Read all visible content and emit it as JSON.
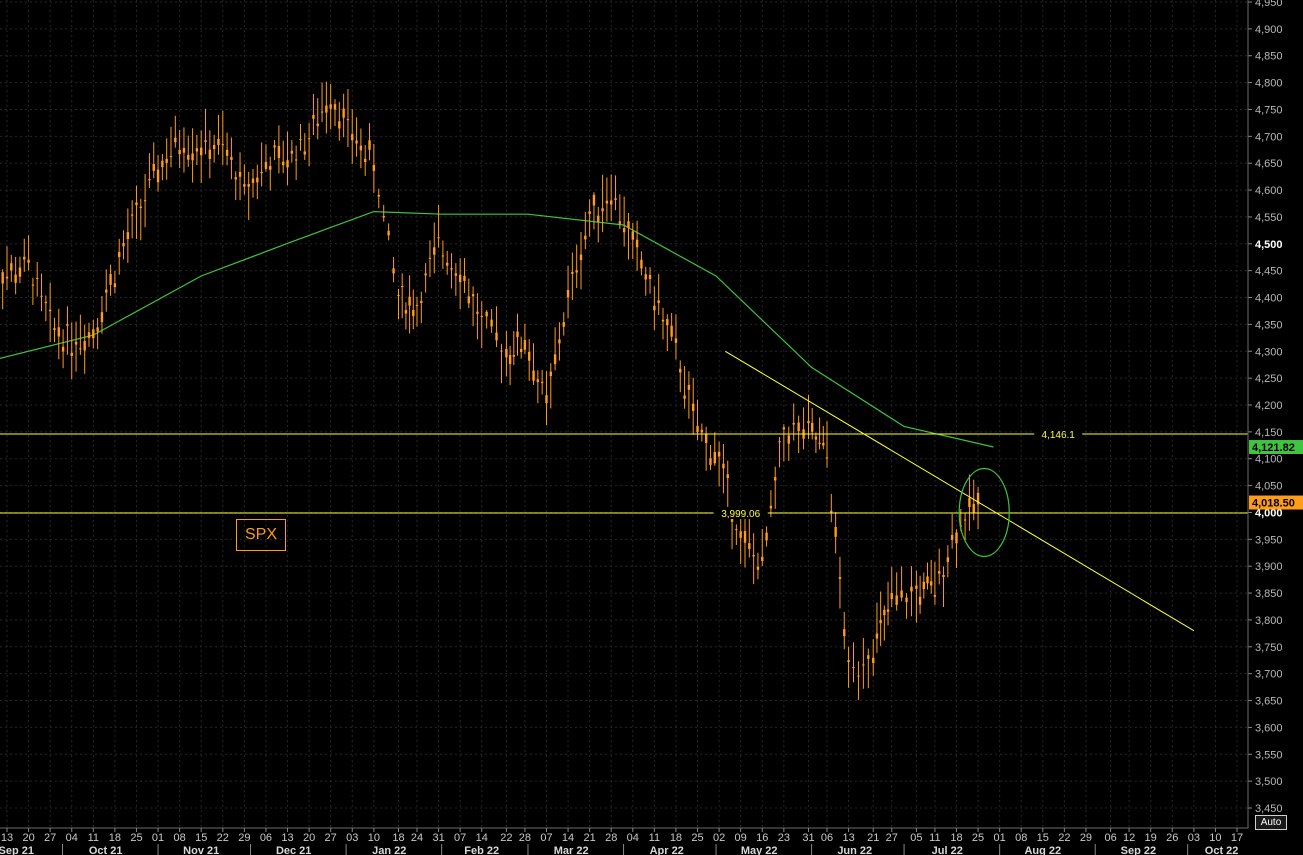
{
  "chart_data": {
    "type": "line",
    "ticker_label": "SPX",
    "axis_mode_label": "Auto",
    "y_range": [
      3450,
      4950
    ],
    "y_ticks": [
      "3,450",
      "3,500",
      "3,550",
      "3,600",
      "3,650",
      "3,700",
      "3,750",
      "3,800",
      "3,850",
      "3,900",
      "3,950",
      "4,000",
      "4,050",
      "4,100",
      "4,150",
      "4,200",
      "4,250",
      "4,300",
      "4,350",
      "4,400",
      "4,450",
      "4,500",
      "4,550",
      "4,600",
      "4,650",
      "4,700",
      "4,750",
      "4,800",
      "4,850",
      "4,900",
      "4,950"
    ],
    "y_ticks_bold": [
      "4,000",
      "4,500"
    ],
    "x_day_ticks": [
      {
        "label": "13",
        "date": "2021-09-13"
      },
      {
        "label": "20",
        "date": "2021-09-20"
      },
      {
        "label": "27",
        "date": "2021-09-27"
      },
      {
        "label": "04",
        "date": "2021-10-04"
      },
      {
        "label": "11",
        "date": "2021-10-11"
      },
      {
        "label": "18",
        "date": "2021-10-18"
      },
      {
        "label": "25",
        "date": "2021-10-25"
      },
      {
        "label": "01",
        "date": "2021-11-01"
      },
      {
        "label": "08",
        "date": "2021-11-08"
      },
      {
        "label": "15",
        "date": "2021-11-15"
      },
      {
        "label": "22",
        "date": "2021-11-22"
      },
      {
        "label": "29",
        "date": "2021-11-29"
      },
      {
        "label": "06",
        "date": "2021-12-06"
      },
      {
        "label": "13",
        "date": "2021-12-13"
      },
      {
        "label": "20",
        "date": "2021-12-20"
      },
      {
        "label": "27",
        "date": "2021-12-27"
      },
      {
        "label": "03",
        "date": "2022-01-03"
      },
      {
        "label": "10",
        "date": "2022-01-10"
      },
      {
        "label": "18",
        "date": "2022-01-18"
      },
      {
        "label": "24",
        "date": "2022-01-24"
      },
      {
        "label": "31",
        "date": "2022-01-31"
      },
      {
        "label": "07",
        "date": "2022-02-07"
      },
      {
        "label": "14",
        "date": "2022-02-14"
      },
      {
        "label": "22",
        "date": "2022-02-22"
      },
      {
        "label": "28",
        "date": "2022-02-28"
      },
      {
        "label": "07",
        "date": "2022-03-07"
      },
      {
        "label": "14",
        "date": "2022-03-14"
      },
      {
        "label": "21",
        "date": "2022-03-21"
      },
      {
        "label": "28",
        "date": "2022-03-28"
      },
      {
        "label": "04",
        "date": "2022-04-04"
      },
      {
        "label": "11",
        "date": "2022-04-11"
      },
      {
        "label": "18",
        "date": "2022-04-18"
      },
      {
        "label": "25",
        "date": "2022-04-25"
      },
      {
        "label": "02",
        "date": "2022-05-02"
      },
      {
        "label": "09",
        "date": "2022-05-09"
      },
      {
        "label": "16",
        "date": "2022-05-16"
      },
      {
        "label": "23",
        "date": "2022-05-23"
      },
      {
        "label": "31",
        "date": "2022-05-31"
      },
      {
        "label": "06",
        "date": "2022-06-06"
      },
      {
        "label": "13",
        "date": "2022-06-13"
      },
      {
        "label": "21",
        "date": "2022-06-21"
      },
      {
        "label": "27",
        "date": "2022-06-27"
      },
      {
        "label": "05",
        "date": "2022-07-05"
      },
      {
        "label": "11",
        "date": "2022-07-11"
      },
      {
        "label": "18",
        "date": "2022-07-18"
      },
      {
        "label": "25",
        "date": "2022-07-25"
      },
      {
        "label": "01",
        "date": "2022-08-01"
      },
      {
        "label": "08",
        "date": "2022-08-08"
      },
      {
        "label": "15",
        "date": "2022-08-15"
      },
      {
        "label": "22",
        "date": "2022-08-22"
      },
      {
        "label": "29",
        "date": "2022-08-29"
      },
      {
        "label": "06",
        "date": "2022-09-06"
      },
      {
        "label": "12",
        "date": "2022-09-12"
      },
      {
        "label": "19",
        "date": "2022-09-19"
      },
      {
        "label": "26",
        "date": "2022-09-26"
      },
      {
        "label": "03",
        "date": "2022-10-03"
      },
      {
        "label": "10",
        "date": "2022-10-10"
      },
      {
        "label": "17",
        "date": "2022-10-17"
      }
    ],
    "x_month_labels": [
      {
        "label": "Sep 21",
        "date": "2021-09-16"
      },
      {
        "label": "Oct 21",
        "date": "2021-10-15"
      },
      {
        "label": "Nov 21",
        "date": "2021-11-15"
      },
      {
        "label": "Dec 21",
        "date": "2021-12-15"
      },
      {
        "label": "Jan 22",
        "date": "2022-01-15"
      },
      {
        "label": "Feb 22",
        "date": "2022-02-14"
      },
      {
        "label": "Mar 22",
        "date": "2022-03-15"
      },
      {
        "label": "Apr 22",
        "date": "2022-04-15"
      },
      {
        "label": "May 22",
        "date": "2022-05-15"
      },
      {
        "label": "Jun 22",
        "date": "2022-06-15"
      },
      {
        "label": "Jul 22",
        "date": "2022-07-15"
      },
      {
        "label": "Aug 22",
        "date": "2022-08-15"
      },
      {
        "label": "Sep 22",
        "date": "2022-09-15"
      },
      {
        "label": "Oct 22",
        "date": "2022-10-12"
      }
    ],
    "price_series": {
      "color": "#ff9c1a",
      "points": [
        [
          "2021-09-06",
          4490
        ],
        [
          "2021-09-13",
          4440
        ],
        [
          "2021-09-20",
          4460
        ],
        [
          "2021-09-27",
          4350
        ],
        [
          "2021-10-04",
          4320
        ],
        [
          "2021-10-11",
          4340
        ],
        [
          "2021-10-18",
          4450
        ],
        [
          "2021-10-25",
          4550
        ],
        [
          "2021-11-01",
          4640
        ],
        [
          "2021-11-08",
          4690
        ],
        [
          "2021-11-15",
          4680
        ],
        [
          "2021-11-22",
          4680
        ],
        [
          "2021-11-29",
          4600
        ],
        [
          "2021-12-06",
          4650
        ],
        [
          "2021-12-13",
          4660
        ],
        [
          "2021-12-20",
          4700
        ],
        [
          "2021-12-27",
          4780
        ],
        [
          "2022-01-03",
          4700
        ],
        [
          "2022-01-10",
          4650
        ],
        [
          "2022-01-18",
          4400
        ],
        [
          "2022-01-24",
          4380
        ],
        [
          "2022-01-31",
          4500
        ],
        [
          "2022-02-07",
          4450
        ],
        [
          "2022-02-14",
          4350
        ],
        [
          "2022-02-22",
          4300
        ],
        [
          "2022-02-28",
          4320
        ],
        [
          "2022-03-07",
          4200
        ],
        [
          "2022-03-14",
          4400
        ],
        [
          "2022-03-21",
          4550
        ],
        [
          "2022-03-28",
          4600
        ],
        [
          "2022-04-04",
          4500
        ],
        [
          "2022-04-11",
          4400
        ],
        [
          "2022-04-18",
          4300
        ],
        [
          "2022-04-25",
          4150
        ],
        [
          "2022-05-02",
          4100
        ],
        [
          "2022-05-09",
          3950
        ],
        [
          "2022-05-16",
          3900
        ],
        [
          "2022-05-23",
          4150
        ],
        [
          "2022-05-31",
          4150
        ],
        [
          "2022-06-06",
          4110
        ],
        [
          "2022-06-13",
          3700
        ],
        [
          "2022-06-21",
          3750
        ],
        [
          "2022-06-27",
          3830
        ],
        [
          "2022-07-05",
          3850
        ],
        [
          "2022-07-11",
          3860
        ],
        [
          "2022-07-18",
          3970
        ],
        [
          "2022-07-25",
          4020
        ]
      ]
    },
    "moving_average": {
      "color": "#3ec43e",
      "points": [
        [
          "2021-09-06",
          4280
        ],
        [
          "2021-10-11",
          4330
        ],
        [
          "2021-11-15",
          4440
        ],
        [
          "2021-12-15",
          4505
        ],
        [
          "2022-01-10",
          4560
        ],
        [
          "2022-02-01",
          4555
        ],
        [
          "2022-03-01",
          4555
        ],
        [
          "2022-04-01",
          4535
        ],
        [
          "2022-05-01",
          4440
        ],
        [
          "2022-06-01",
          4270
        ],
        [
          "2022-07-01",
          4160
        ],
        [
          "2022-07-30",
          4121.82
        ]
      ]
    },
    "trendline": {
      "color": "#ffff33",
      "from": [
        "2022-05-04",
        4300
      ],
      "to": [
        "2022-10-03",
        3780
      ]
    },
    "horizontal_levels": [
      {
        "value": 4146.1,
        "label": "4,146.1",
        "label_date": "2022-08-20"
      },
      {
        "value": 3999.06,
        "label": "3,999.06",
        "label_date": "2022-05-09"
      }
    ],
    "highlight_ellipse": {
      "center": [
        "2022-07-27",
        4000
      ],
      "color": "#3ec43e"
    },
    "last_value_tags": [
      {
        "label": "4,121.82",
        "value": 4121.82,
        "bg": "#3ec43e",
        "fg": "#000000"
      },
      {
        "label": "4,018.50",
        "value": 4018.5,
        "bg": "#ff9c1a",
        "fg": "#000000"
      }
    ],
    "grid": true
  }
}
